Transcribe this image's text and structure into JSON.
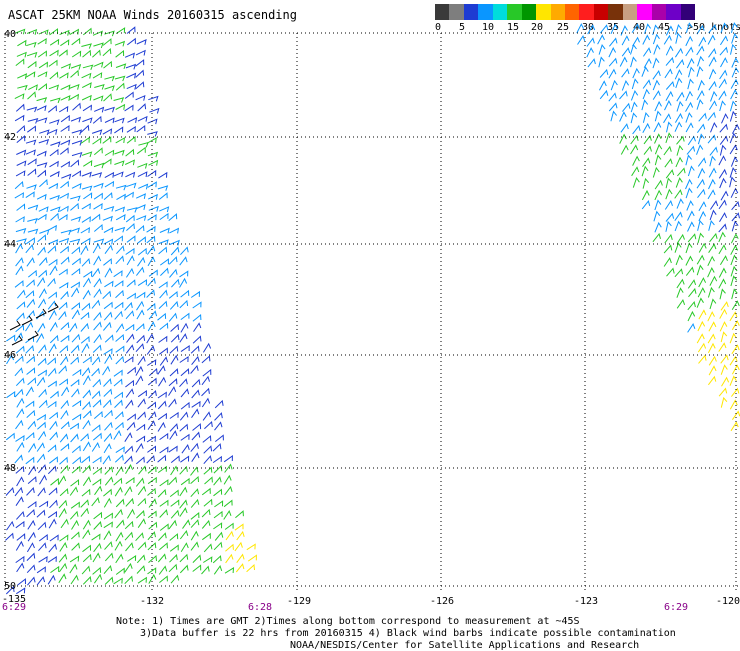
{
  "title": "ASCAT 25KM NOAA Winds 20160315 ascending",
  "legend": {
    "colors": [
      "#3a3a3a",
      "#7e7e7e",
      "#1e3cd2",
      "#0a96ff",
      "#00dcdc",
      "#28c828",
      "#009600",
      "#ffe600",
      "#ffaa00",
      "#ff6400",
      "#ff1e1e",
      "#c80000",
      "#78320a",
      "#c8a082",
      "#ff00ff",
      "#aa00aa",
      "#6e00c8",
      "#320078"
    ],
    "ticks": [
      "0",
      "5",
      "10",
      "15",
      "20",
      "25",
      "30",
      "35",
      "40",
      "45",
      ">50 knots"
    ]
  },
  "lat_labels": [
    "40",
    "42",
    "44",
    "46",
    "48",
    "50"
  ],
  "lon_labels": [
    "-132",
    "-129",
    "-126",
    "-123",
    "-120"
  ],
  "bottom_lon": "-135",
  "time_labels": [
    "6:29",
    "6:28",
    "6:29"
  ],
  "notes": {
    "line1": "Note: 1) Times are GMT 2)Times along bottom correspond to measurement at ~45S",
    "line2": "3)Data buffer is 22 hrs from 20160315 4) Black wind barbs indicate possible contamination",
    "line3": "NOAA/NESDIS/Center for Satellite Applications and Research"
  }
}
